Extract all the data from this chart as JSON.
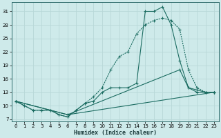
{
  "xlabel": "Humidex (Indice chaleur)",
  "bg_color": "#ceeaea",
  "line_color": "#1a6b60",
  "grid_color": "#b8d8d8",
  "xlim": [
    -0.5,
    23.5
  ],
  "ylim": [
    6.5,
    33
  ],
  "xticks": [
    0,
    1,
    2,
    3,
    4,
    5,
    6,
    7,
    8,
    9,
    10,
    11,
    12,
    13,
    14,
    15,
    16,
    17,
    18,
    19,
    20,
    21,
    22,
    23
  ],
  "yticks": [
    7,
    10,
    13,
    16,
    19,
    22,
    25,
    28,
    31
  ],
  "curve1_x": [
    0,
    1,
    2,
    3,
    4,
    5,
    6,
    7,
    8,
    9,
    10,
    11,
    12,
    13,
    14,
    15,
    16,
    17,
    18,
    19,
    20,
    21,
    22,
    23
  ],
  "curve1_y": [
    11,
    10,
    9,
    9,
    9,
    8,
    7.5,
    9,
    10.5,
    12,
    14,
    18,
    21,
    22,
    26,
    28,
    29,
    29.5,
    29,
    27,
    18,
    14,
    13,
    13
  ],
  "curve2_x": [
    0,
    1,
    2,
    3,
    4,
    5,
    6,
    7,
    8,
    9,
    10,
    11,
    12,
    13,
    14,
    15,
    16,
    17,
    18,
    19,
    20,
    21,
    22,
    23
  ],
  "curve2_y": [
    11,
    10,
    9,
    9,
    9,
    8,
    7.5,
    9,
    10.5,
    11,
    13,
    14,
    14,
    14,
    15,
    31,
    31,
    32,
    28,
    20,
    14,
    13,
    13,
    13
  ],
  "curve3_x": [
    0,
    6,
    23
  ],
  "curve3_y": [
    11,
    8,
    13
  ],
  "curve4_x": [
    0,
    6,
    19,
    20,
    21,
    22,
    23
  ],
  "curve4_y": [
    11,
    8,
    18,
    14,
    13.5,
    13,
    13
  ]
}
